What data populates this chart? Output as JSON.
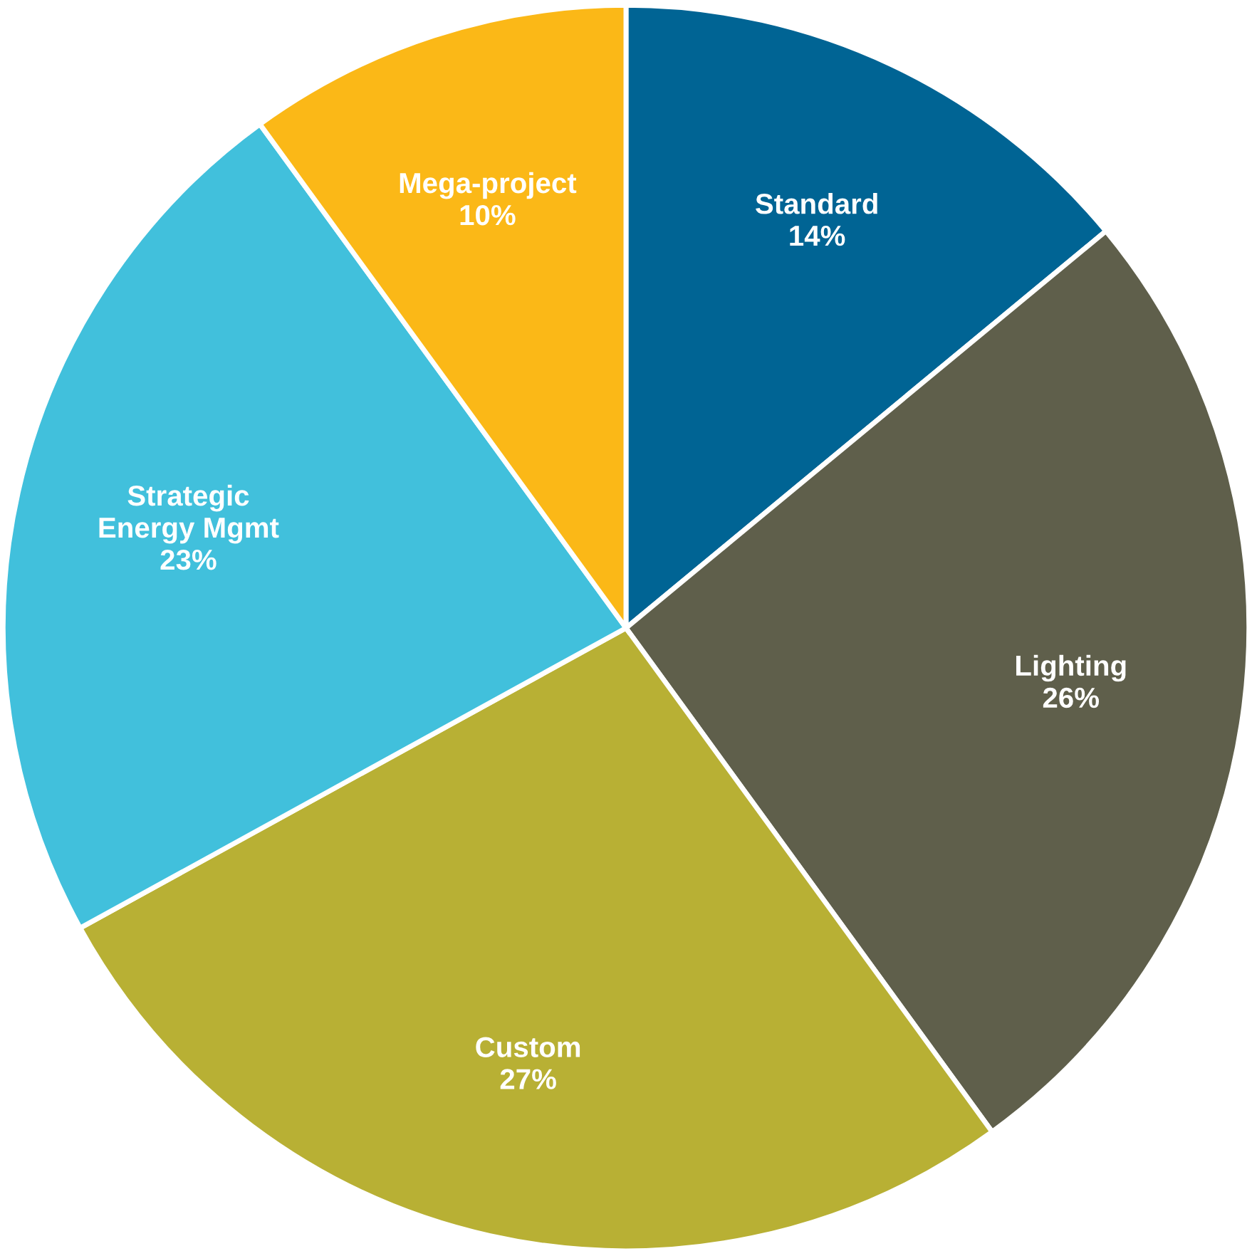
{
  "chart_data": {
    "type": "pie",
    "categories": [
      "Standard",
      "Lighting",
      "Custom",
      "Strategic\nEnergy Mgmt",
      "Mega-project"
    ],
    "values": [
      14,
      26,
      27,
      23,
      10
    ],
    "colors": [
      "#006494",
      "#5f5f4b",
      "#b8b034",
      "#41c0dc",
      "#fbb817"
    ],
    "value_labels": [
      "14%",
      "26%",
      "27%",
      "23%",
      "10%"
    ],
    "legend": false
  }
}
